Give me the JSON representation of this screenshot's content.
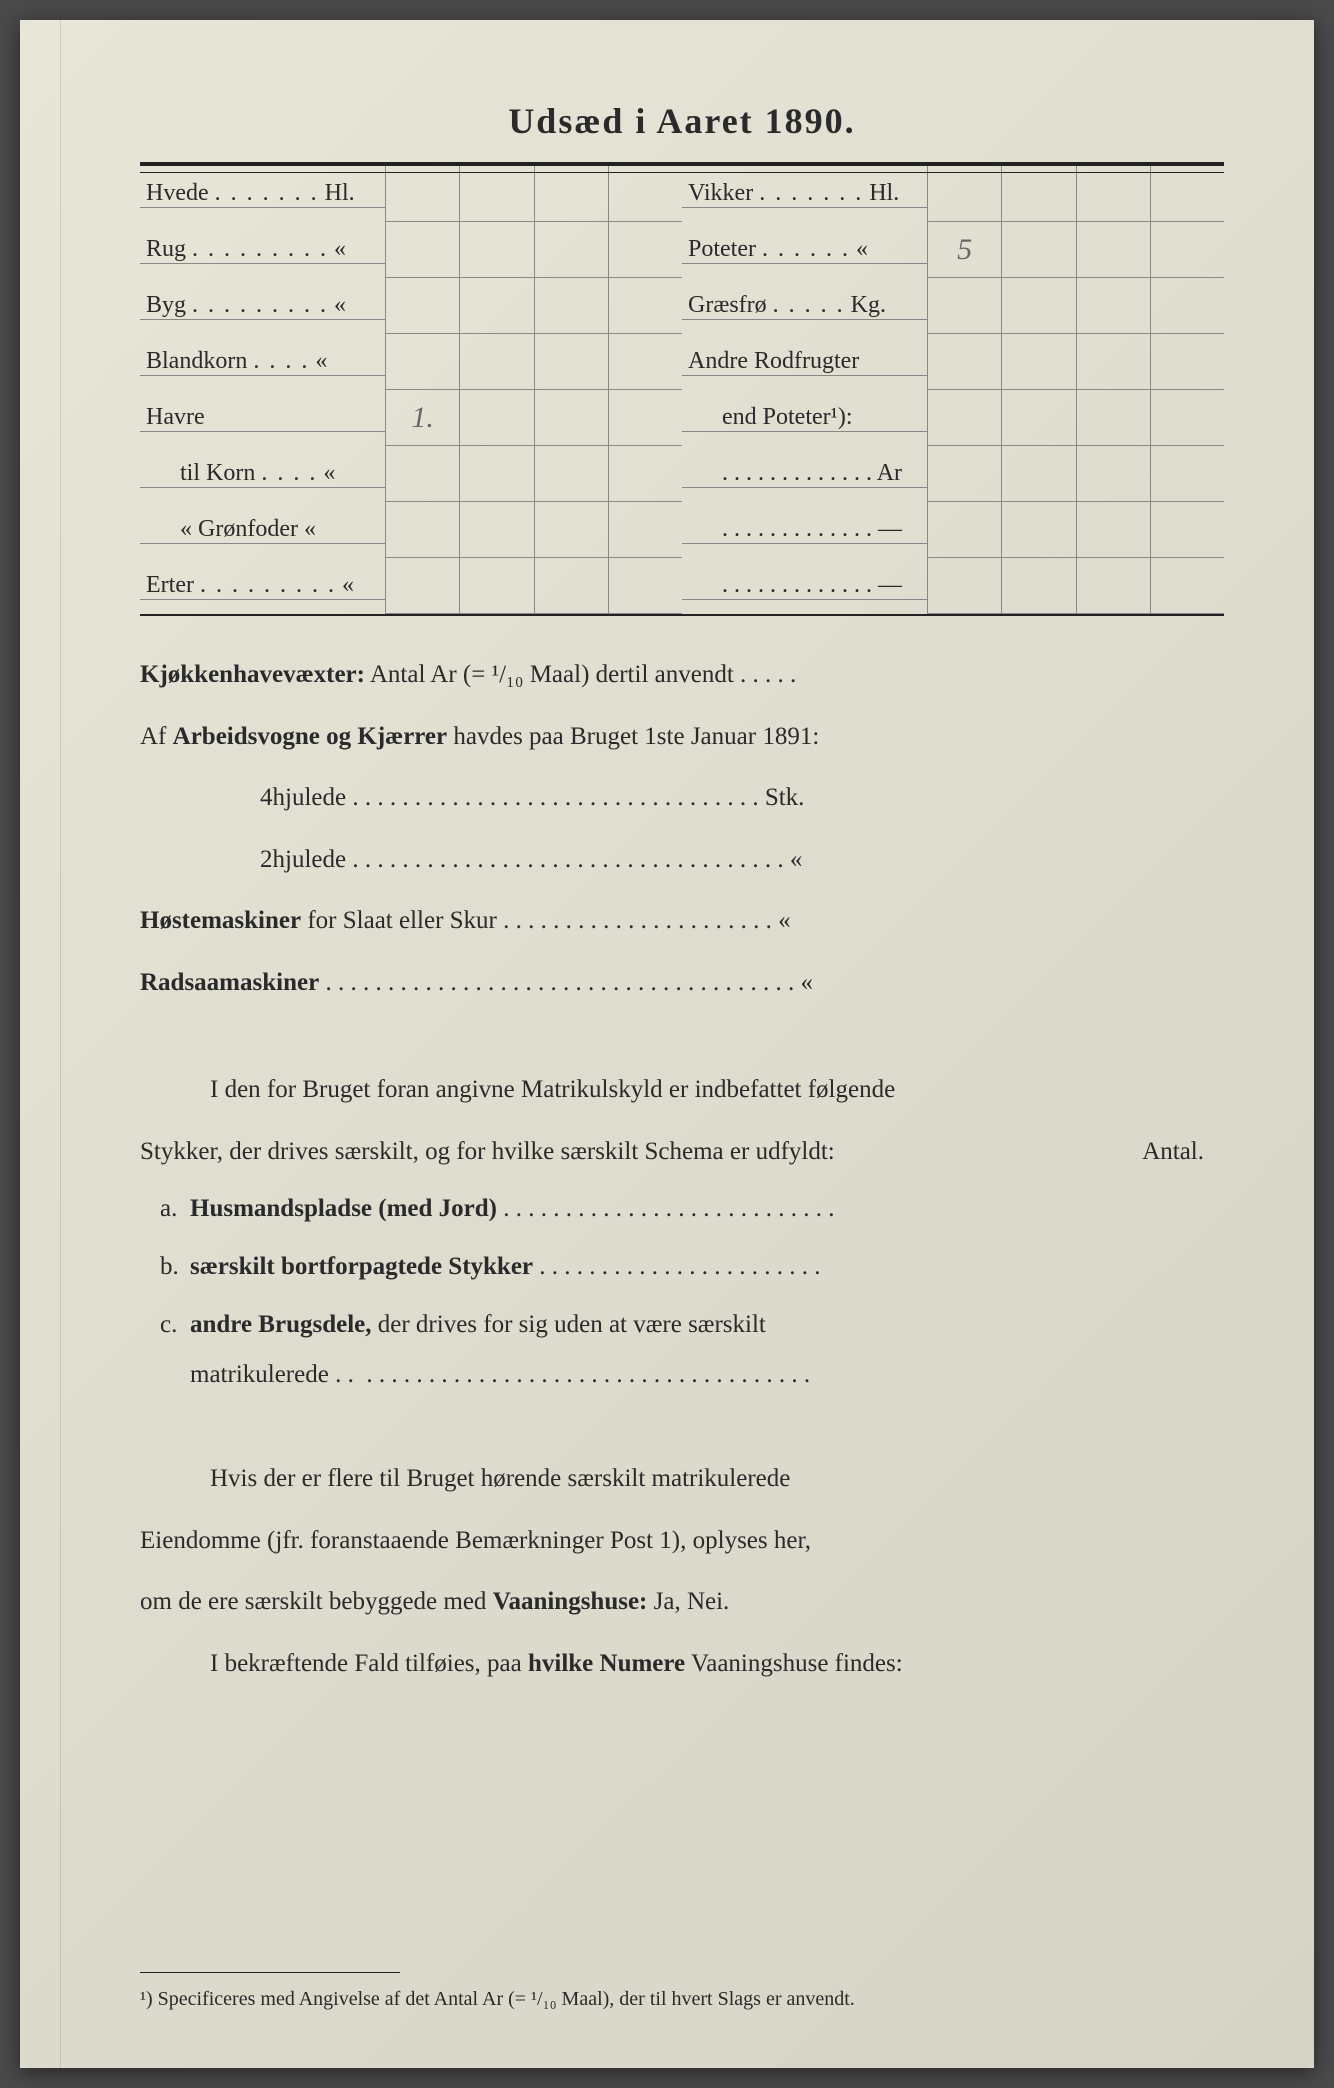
{
  "title": "Udsæd i Aaret 1890.",
  "crops_left": [
    {
      "label": "Hvede",
      "dots": ". . . . . . .",
      "unit": "Hl.",
      "vals": [
        "",
        "",
        "",
        ""
      ]
    },
    {
      "label": "Rug",
      "dots": ". . . . . . . . .",
      "unit": "«",
      "vals": [
        "",
        "",
        "",
        ""
      ]
    },
    {
      "label": "Byg",
      "dots": ". . . . . . . . .",
      "unit": "«",
      "vals": [
        "",
        "",
        "",
        ""
      ]
    },
    {
      "label": "Blandkorn",
      "dots": ". . . .",
      "unit": "«",
      "vals": [
        "",
        "",
        "",
        ""
      ]
    },
    {
      "label": "Havre",
      "dots": "",
      "unit": "",
      "vals": [
        "1.",
        "",
        "",
        ""
      ]
    },
    {
      "label": "til Korn",
      "dots": ". . . .",
      "unit": "«",
      "indent": true,
      "vals": [
        "",
        "",
        "",
        ""
      ]
    },
    {
      "label": "« Grønfoder",
      "dots": "",
      "unit": "«",
      "indent": true,
      "vals": [
        "",
        "",
        "",
        ""
      ]
    },
    {
      "label": "Erter",
      "dots": ". . . . . . . . .",
      "unit": "«",
      "vals": [
        "",
        "",
        "",
        ""
      ]
    }
  ],
  "crops_right": [
    {
      "label": "Vikker",
      "dots": ". . . . . . .",
      "unit": "Hl.",
      "vals": [
        "",
        "",
        "",
        ""
      ]
    },
    {
      "label": "Poteter",
      "dots": ". . . . . .",
      "unit": "«",
      "vals": [
        "5",
        "",
        "",
        ""
      ]
    },
    {
      "label": "Græsfrø",
      "dots": ". . . . .",
      "unit": "Kg.",
      "vals": [
        "",
        "",
        "",
        ""
      ]
    },
    {
      "label": "Andre Rodfrugter",
      "dots": "",
      "unit": "",
      "vals": [
        "",
        "",
        "",
        ""
      ]
    },
    {
      "label": "end Poteter¹):",
      "dots": "",
      "unit": "",
      "indent": true,
      "vals": [
        "",
        "",
        "",
        ""
      ]
    },
    {
      "label": ". . . . . . . . . . . . .",
      "dots": "",
      "unit": "Ar",
      "indent": true,
      "vals": [
        "",
        "",
        "",
        ""
      ]
    },
    {
      "label": ". . . . . . . . . . . . .",
      "dots": "",
      "unit": "—",
      "indent": true,
      "vals": [
        "",
        "",
        "",
        ""
      ]
    },
    {
      "label": ". . . . . . . . . . . . .",
      "dots": "",
      "unit": "—",
      "indent": true,
      "vals": [
        "",
        "",
        "",
        ""
      ]
    }
  ],
  "body": {
    "kjokken_label": "Kjøkkenhavevæxter:",
    "kjokken_text": "Antal Ar (= ¹/₁₀ Maal) dertil anvendt . . . . .",
    "vogne_line": "Af Arbeidsvogne og Kjærrer havdes paa Bruget 1ste Januar 1891:",
    "hjul4": "4hjulede . . . . . . . . . . . . . . . . . . . . . . . . . . . . . . . . . Stk.",
    "hjul2": "2hjulede . . . . . . . . . . . . . . . . . . . . . . . . . . . . . . . . . . . «",
    "hoste": "Høstemaskiner for Slaat eller Skur . . . . . . . . . . . . . . . . . . . . . . «",
    "radsaa": "Radsaamaskiner . . . . . . . . . . . . . . . . . . . . . . . . . . . . . . . . . . . . . . «"
  },
  "section2": {
    "intro1": "I den for Bruget foran angivne Matrikulskyld er indbefattet følgende",
    "intro2": "Stykker, der drives særskilt, og for hvilke særskilt Schema er udfyldt:",
    "antal": "Antal.",
    "a_label": "a.",
    "a_text": "Husmandspladse (med Jord) . . . . . . . . . . . . . . . . . . . . . . . . . . .",
    "b_label": "b.",
    "b_text": "særskilt bortforpagtede Stykker . . . . . . . . . . . . . . . . . . . . . . .",
    "c_label": "c.",
    "c_text1": "andre Brugsdele, der drives for sig uden at være særskilt",
    "c_text2": "matrikulerede . .  . . . . . . . . . . . . . . . . . . . . . . . . . . . . . . . . . . . ."
  },
  "section3": {
    "line1": "Hvis der er flere til Bruget hørende særskilt matrikulerede",
    "line2": "Eiendomme (jfr. foranstaaende Bemærkninger Post 1), oplyses her,",
    "line3_pre": "om de ere særskilt bebyggede med ",
    "line3_bold": "Vaaningshuse:",
    "line3_post": " Ja, Nei.",
    "line4_pre": "I bekræftende Fald tilføies, paa ",
    "line4_bold": "hvilke Numere",
    "line4_post": " Vaaningshuse findes:"
  },
  "footnote": "¹) Specificeres med Angivelse af det Antal Ar (= ¹/₁₀ Maal), der til hvert Slags er anvendt."
}
